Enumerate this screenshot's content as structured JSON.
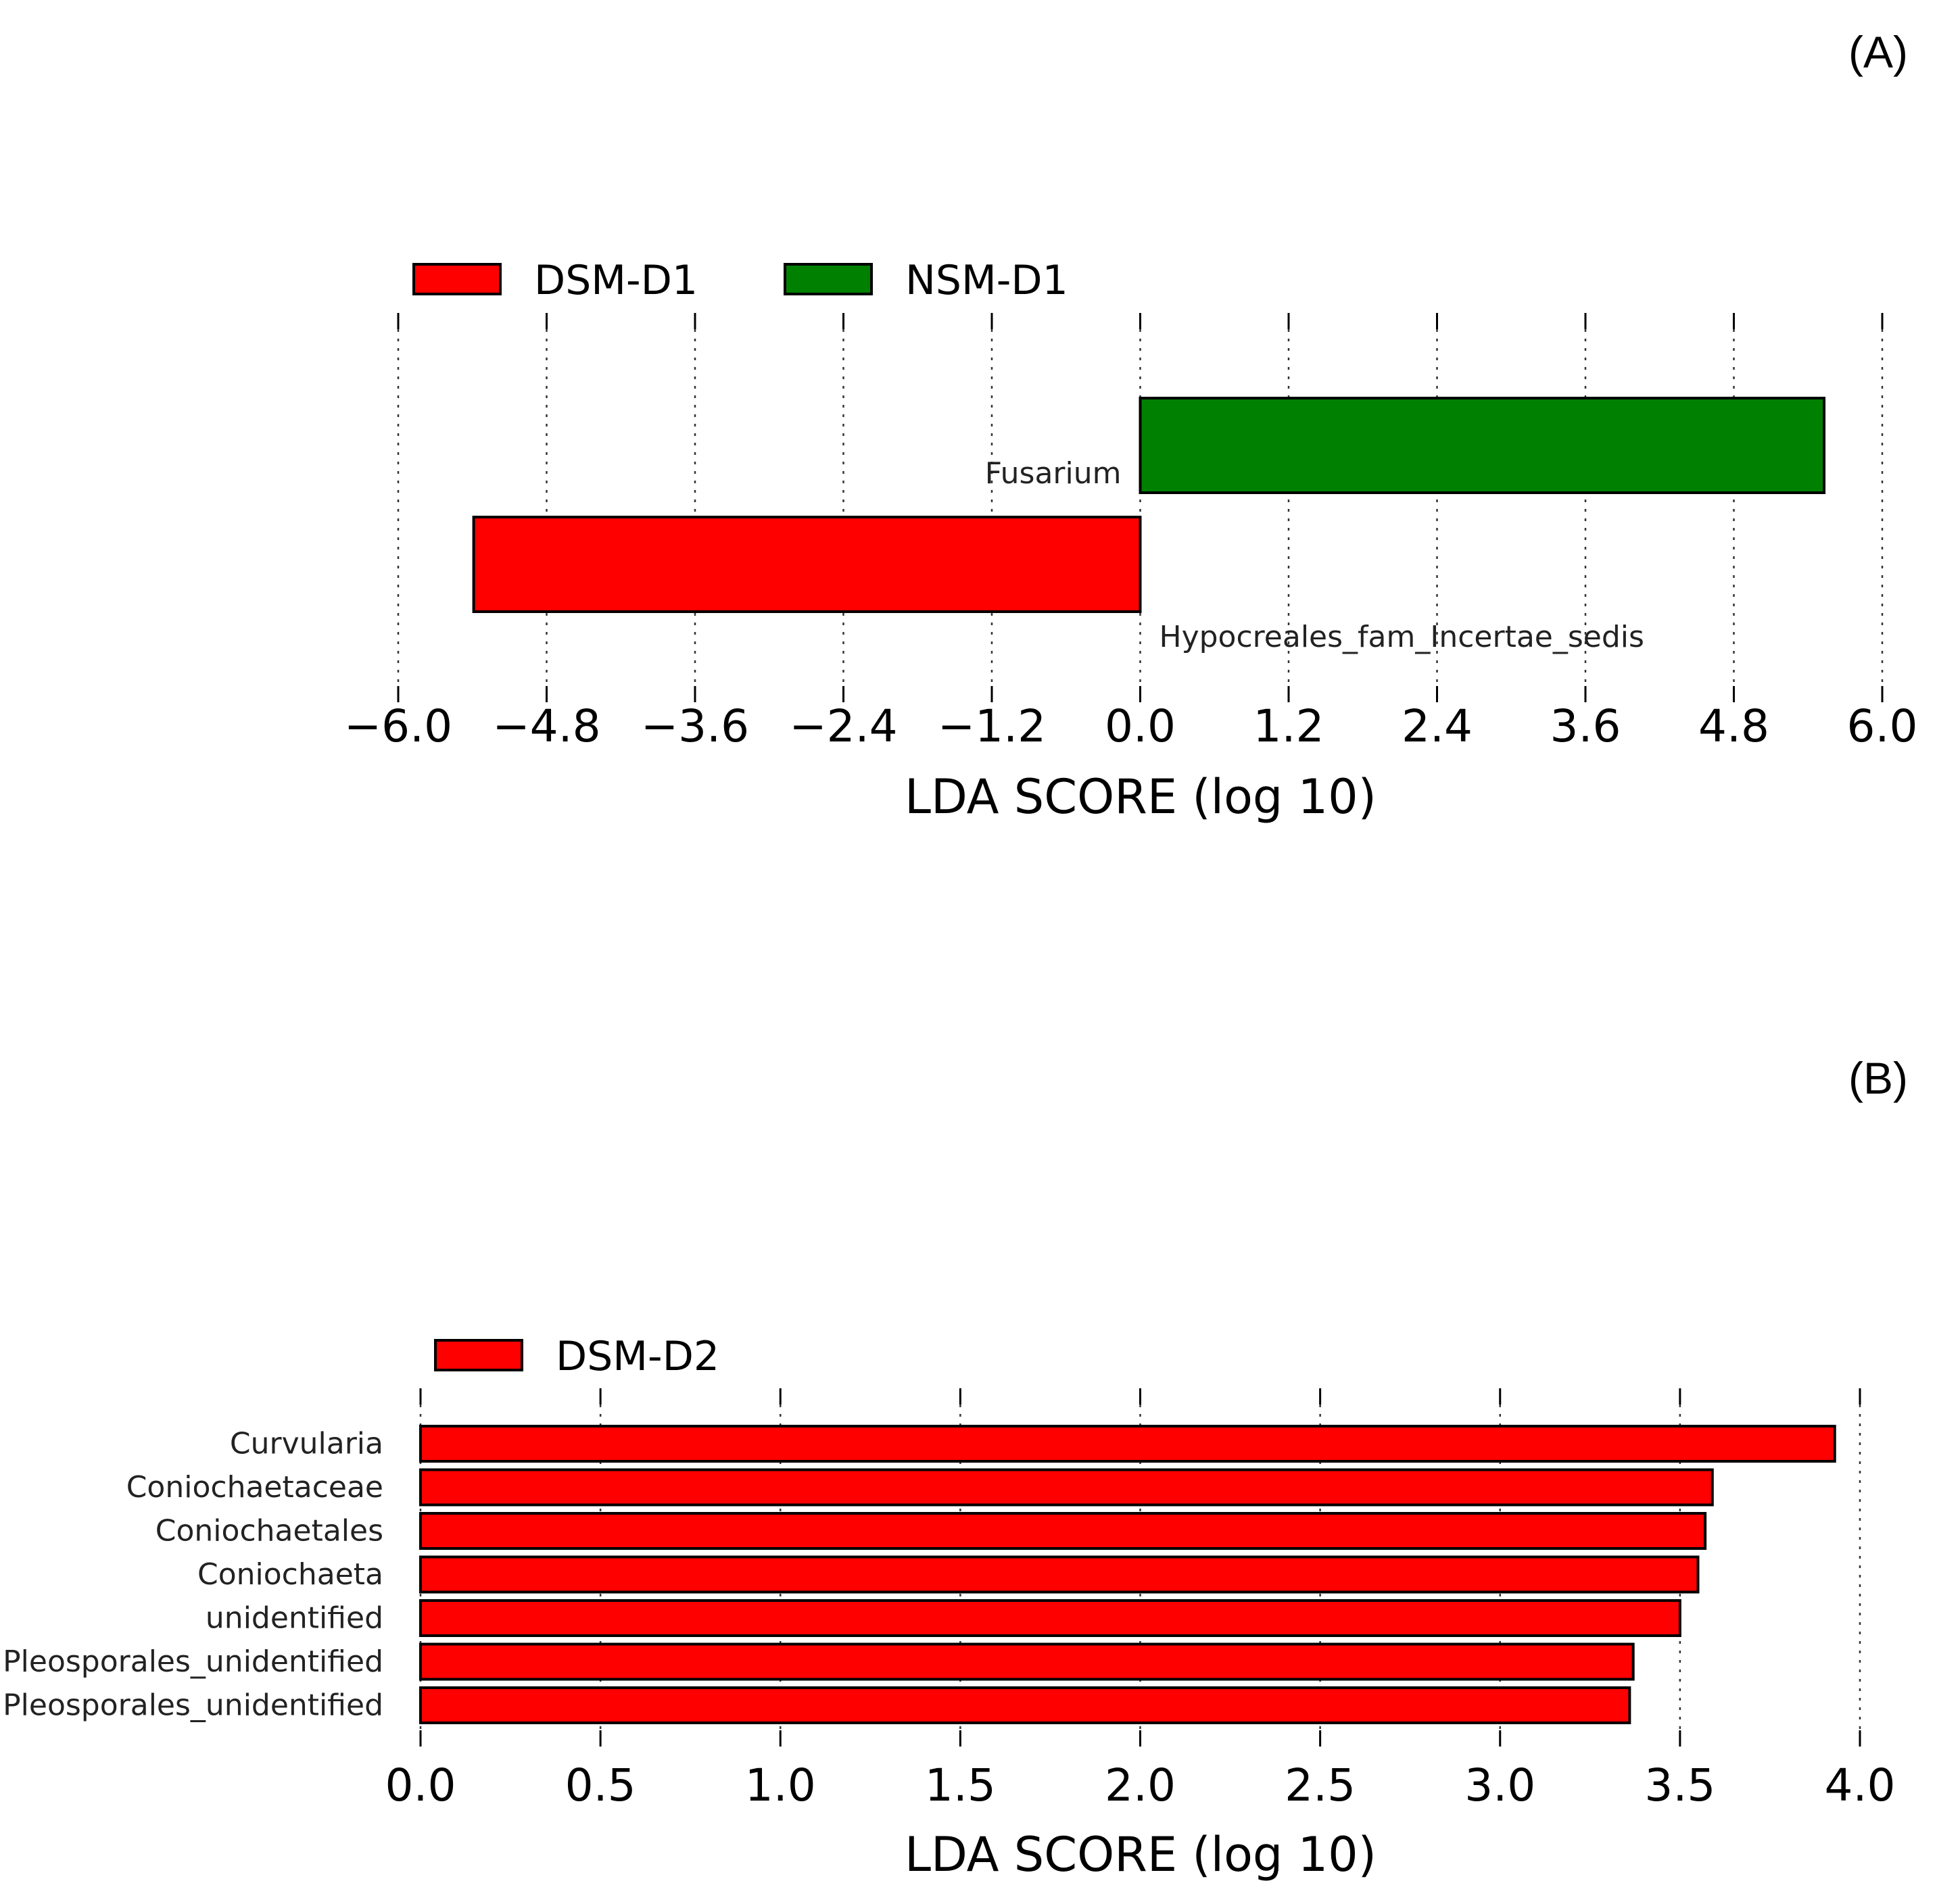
{
  "chart_data": [
    {
      "panel_label": "(A)",
      "type": "bar",
      "orientation": "horizontal",
      "xlabel": "LDA SCORE (log 10)",
      "xlim": [
        -6.0,
        6.0
      ],
      "xticks": [
        "−6.0",
        "−4.8",
        "−3.6",
        "−2.4",
        "−1.2",
        "0.0",
        "1.2",
        "2.4",
        "3.6",
        "4.8",
        "6.0"
      ],
      "xtick_values": [
        -6.0,
        -4.8,
        -3.6,
        -2.4,
        -1.2,
        0.0,
        1.2,
        2.4,
        3.6,
        4.8,
        6.0
      ],
      "grid": true,
      "legend": [
        {
          "name": "DSM-D1",
          "color": "#ff0000"
        },
        {
          "name": "NSM-D1",
          "color": "#008000"
        }
      ],
      "bars": [
        {
          "label": "Fusarium",
          "value": 5.53,
          "group": "NSM-D1",
          "color": "#008000"
        },
        {
          "label": "Hypocreales_fam_Incertae_sedis",
          "value": -5.39,
          "group": "DSM-D1",
          "color": "#ff0000"
        }
      ]
    },
    {
      "panel_label": "(B)",
      "type": "bar",
      "orientation": "horizontal",
      "xlabel": "LDA SCORE (log 10)",
      "xlim": [
        0.0,
        4.0
      ],
      "xticks": [
        "0.0",
        "0.5",
        "1.0",
        "1.5",
        "2.0",
        "2.5",
        "3.0",
        "3.5",
        "4.0"
      ],
      "xtick_values": [
        0.0,
        0.5,
        1.0,
        1.5,
        2.0,
        2.5,
        3.0,
        3.5,
        4.0
      ],
      "grid": true,
      "legend": [
        {
          "name": "DSM-D2",
          "color": "#ff0000"
        }
      ],
      "bars": [
        {
          "label": "Curvularia",
          "value": 3.93,
          "group": "DSM-D2",
          "color": "#ff0000"
        },
        {
          "label": "Coniochaetaceae",
          "value": 3.59,
          "group": "DSM-D2",
          "color": "#ff0000"
        },
        {
          "label": "Coniochaetales",
          "value": 3.57,
          "group": "DSM-D2",
          "color": "#ff0000"
        },
        {
          "label": "Coniochaeta",
          "value": 3.55,
          "group": "DSM-D2",
          "color": "#ff0000"
        },
        {
          "label": "unidentified",
          "value": 3.5,
          "group": "DSM-D2",
          "color": "#ff0000"
        },
        {
          "label": "Pleosporales_unidentified",
          "value": 3.37,
          "group": "DSM-D2",
          "color": "#ff0000"
        },
        {
          "label": "Pleosporales_unidentified",
          "value": 3.36,
          "group": "DSM-D2",
          "color": "#ff0000"
        }
      ]
    }
  ]
}
